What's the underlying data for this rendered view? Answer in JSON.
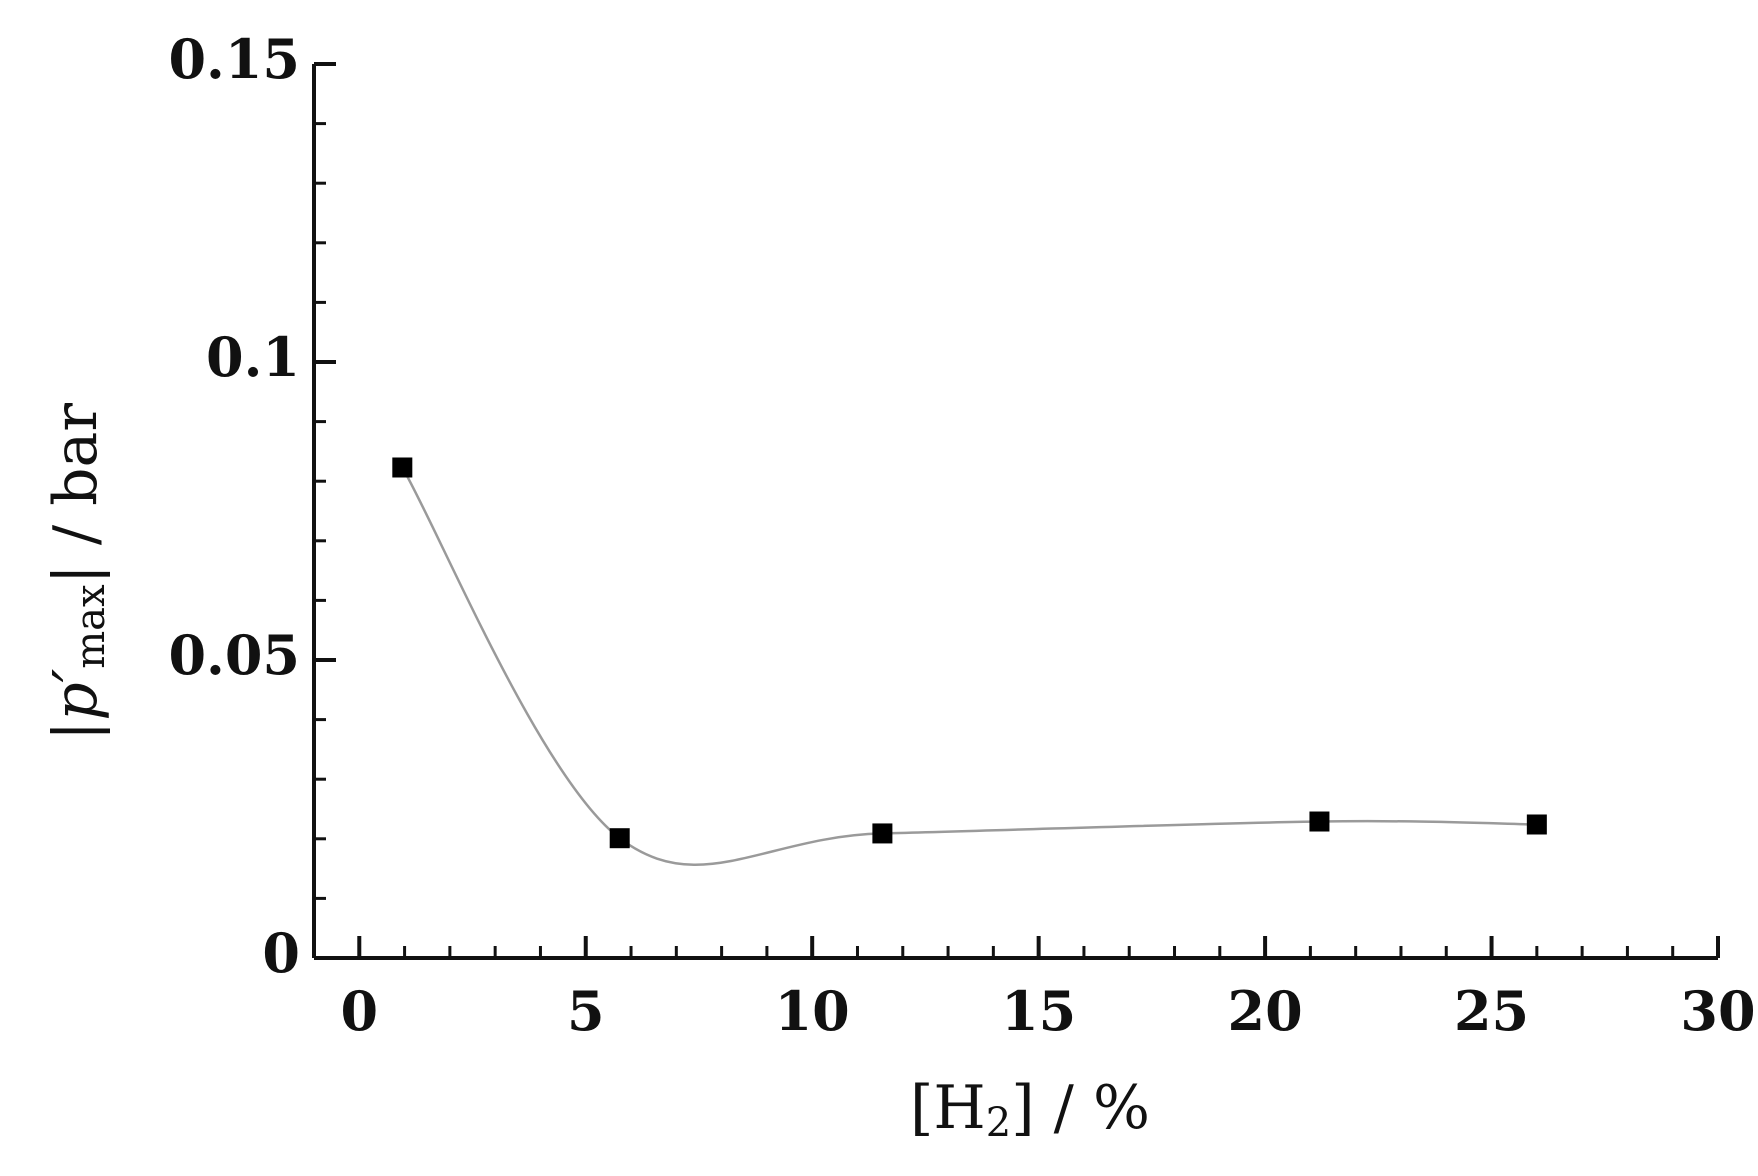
{
  "chart_data": {
    "type": "scatter",
    "xlabel": {
      "main": "[H",
      "sub": "2",
      "rest": "] / %"
    },
    "ylabel": {
      "main": "|p′",
      "sub": "max",
      "rest": "| / bar"
    },
    "series": [
      {
        "color": "#000000",
        "line_color": "#9a9a9a",
        "smooth": true,
        "x": [
          0.95,
          5.75,
          11.55,
          21.2,
          26.0
        ],
        "values": [
          0.0823,
          0.0201,
          0.0209,
          0.0229,
          0.0224
        ]
      }
    ],
    "xlim": [
      -1,
      30
    ],
    "ylim": [
      0,
      0.15
    ],
    "xticks": [
      0,
      5,
      10,
      15,
      20,
      25,
      30
    ],
    "yticks": [
      0,
      0.05,
      0.1,
      0.15
    ],
    "xminorticks": [
      1,
      2,
      3,
      4,
      6,
      7,
      8,
      9,
      11,
      12,
      13,
      14,
      16,
      17,
      18,
      19,
      21,
      22,
      23,
      24,
      26,
      27,
      28,
      29
    ],
    "yminorticks": [
      0.01,
      0.02,
      0.03,
      0.04,
      0.06,
      0.07,
      0.08,
      0.09,
      0.11,
      0.12,
      0.13,
      0.14
    ]
  }
}
